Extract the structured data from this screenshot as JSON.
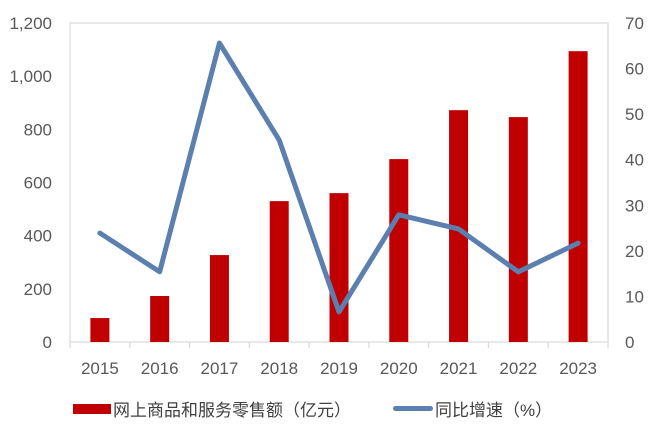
{
  "chart_data": {
    "type": "bar+line",
    "title": "",
    "categories": [
      "2015",
      "2016",
      "2017",
      "2018",
      "2019",
      "2020",
      "2021",
      "2022",
      "2023"
    ],
    "series": [
      {
        "name": "网上商品和服务零售额（亿元）",
        "type": "bar",
        "axis": "left",
        "color": "#C00000",
        "values": [
          90,
          173,
          327,
          530,
          560,
          688,
          872,
          846,
          1094
        ]
      },
      {
        "name": "同比增速（%）",
        "type": "line",
        "axis": "right",
        "color": "#5B7FAE",
        "values": [
          23.9,
          15.4,
          65.6,
          44.3,
          6.6,
          27.9,
          24.8,
          15.4,
          21.7
        ]
      }
    ],
    "y_left": {
      "ylim": [
        0,
        1200
      ],
      "ticks": [
        0,
        200,
        400,
        600,
        800,
        1000,
        1200
      ],
      "tick_labels": [
        "0",
        "200",
        "400",
        "600",
        "800",
        "1,000",
        "1,200"
      ]
    },
    "y_right": {
      "ylim": [
        0,
        70
      ],
      "ticks": [
        0,
        10,
        20,
        30,
        40,
        50,
        60,
        70
      ],
      "tick_labels": [
        "0",
        "10",
        "20",
        "30",
        "40",
        "50",
        "60",
        "70"
      ]
    },
    "xlabel": "",
    "ylabel": "",
    "grid": false,
    "legend_position": "bottom"
  },
  "legend": {
    "bar_label": "网上商品和服务零售额（亿元）",
    "line_label": "同比增速（%）"
  }
}
